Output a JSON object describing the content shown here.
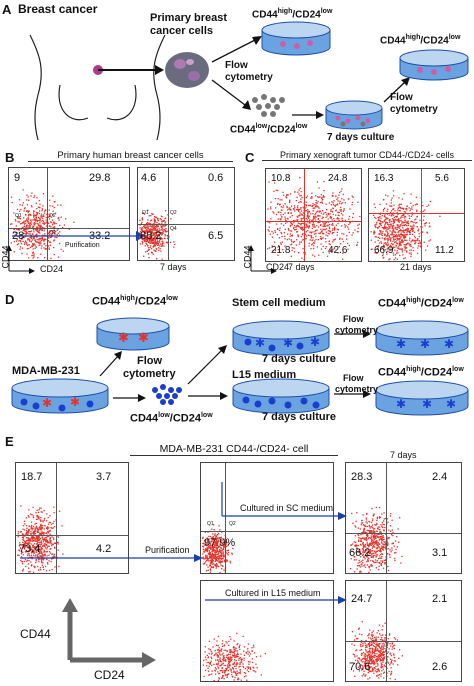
{
  "colors": {
    "dots": "#e5322b",
    "blue_cell": "#1a3fd0",
    "dish_fill": "#6aa3e0",
    "dish_stroke": "#1c4fa8",
    "arrow_blue": "#1a3fa8",
    "gray_cell": "#777777",
    "pink_cell": "#cc5fa4"
  },
  "panelA": {
    "letter": "A",
    "breast_cancer": "Breast cancer",
    "primary_cells_line1": "Primary breast",
    "primary_cells_line2": "cancer cells",
    "flow_line1": "Flow",
    "flow_line2": "cytometry",
    "cd44_high": "CD44",
    "sup_high": "high",
    "cd24_low": "/CD24",
    "sup_low": "low",
    "cd44_low": "CD44",
    "slash_cd24": "/CD24",
    "culture": "7 days culture",
    "flow2_line1": "Flow",
    "flow2_line2": "cytometry"
  },
  "panelB": {
    "letter": "B",
    "title": "Primary human breast cancer cells",
    "plot1": {
      "tl": "9",
      "tr": "29.8",
      "bl": "28",
      "br": "33.2",
      "g1": "Q1",
      "g2": "Q2",
      "g4": "Q4"
    },
    "plot2": {
      "tl": "4.6",
      "tr": "0.6",
      "bl": "88.2",
      "br": "6.5",
      "g1": "Q1",
      "g2": "Q2",
      "g4": "Q4"
    },
    "purification": "Purification",
    "days": "7 days",
    "y_axis": "CD44",
    "x_axis": "CD24"
  },
  "panelC": {
    "letter": "C",
    "title": "Primary xenograft tumor CD44-/CD24- cells",
    "plot1": {
      "tl": "10.8",
      "tr": "24.8",
      "bl": "21.8",
      "br": "42.6"
    },
    "plot2": {
      "tl": "16.3",
      "tr": "5.6",
      "bl": "66.9",
      "br": "11.2"
    },
    "days1": "7 days",
    "days2": "21 days",
    "y_axis": "CD44",
    "x_axis": "CD24"
  },
  "panelD": {
    "letter": "D",
    "cell_line": "MDA-MB-231",
    "flow_line1": "Flow",
    "flow_line2": "cytometry",
    "stem_medium": "Stem cell medium",
    "l15_medium": "L15 medium",
    "culture": "7 days culture",
    "flow2_line1": "Flow",
    "flow2_line2": "cytometry",
    "cd44": "CD44",
    "cd24": "/CD24",
    "high": "high",
    "low": "low"
  },
  "panelE": {
    "letter": "E",
    "title": "MDA-MB-231  CD44-/CD24- cell",
    "days": "7 days",
    "plot1": {
      "tl": "18.7",
      "tr": "3.7",
      "bl": "73.4",
      "br": "4.2"
    },
    "plot2": {
      "bl": "97.9%",
      "g1": "Q1",
      "g2": "Q2"
    },
    "plot3": {
      "tl": "28.3",
      "tr": "2.4",
      "bl": "66.2",
      "br": "3.1"
    },
    "plot4": {
      "tl": "24.7",
      "tr": "2.1",
      "bl": "70.6",
      "br": "2.6"
    },
    "purification": "Purification",
    "sc_medium": "Cultured in SC medium",
    "l15_medium": "Cultured in L15 medium",
    "y_axis": "CD44",
    "x_axis": "CD24"
  }
}
